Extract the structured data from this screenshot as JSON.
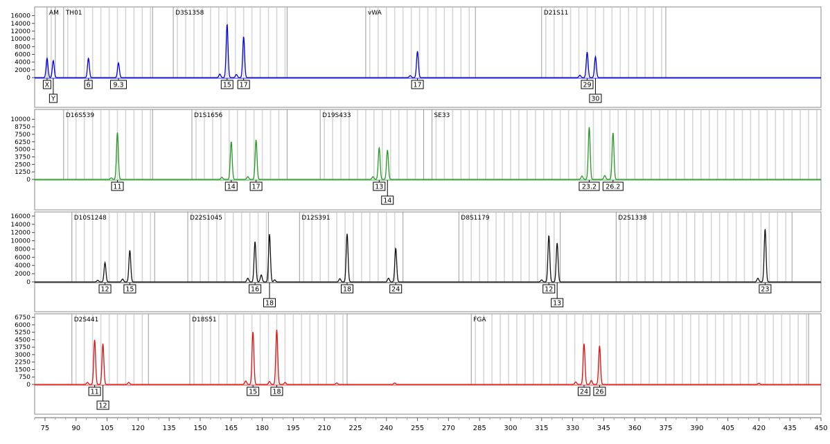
{
  "chart_data": {
    "type": "line",
    "x_axis": {
      "range": [
        70,
        450
      ],
      "ticks": [
        75,
        90,
        105,
        120,
        135,
        150,
        165,
        180,
        195,
        210,
        225,
        240,
        255,
        270,
        285,
        300,
        315,
        330,
        345,
        360,
        375,
        390,
        405,
        420,
        435,
        450
      ]
    },
    "panels": [
      {
        "color": "#0000dd",
        "y_ticks": [
          16000,
          14000,
          12000,
          10000,
          8000,
          6000,
          4000,
          2000,
          0
        ],
        "ylim": [
          0,
          17000
        ],
        "markers": [
          {
            "name": "AM",
            "start": 76,
            "end": 80
          },
          {
            "name": "TH01",
            "start": 84,
            "end": 127
          },
          {
            "name": "D3S1358",
            "start": 137,
            "end": 192
          },
          {
            "name": "vWA",
            "start": 230,
            "end": 283
          },
          {
            "name": "D21S11",
            "start": 315,
            "end": 375
          }
        ],
        "peaks": [
          {
            "x": 76.0,
            "height": 5000,
            "label": "X",
            "row": 0
          },
          {
            "x": 79.0,
            "height": 4400,
            "label": "Y",
            "row": 1
          },
          {
            "x": 96.0,
            "height": 5000,
            "label": "6",
            "row": 0
          },
          {
            "x": 110.5,
            "height": 3800,
            "label": "9.3",
            "row": 0
          },
          {
            "x": 163.0,
            "height": 13800,
            "label": "15",
            "row": 0
          },
          {
            "x": 171.0,
            "height": 10600,
            "label": "17",
            "row": 0
          },
          {
            "x": 255.0,
            "height": 6800,
            "label": "17",
            "row": 0
          },
          {
            "x": 337.0,
            "height": 6600,
            "label": "29",
            "row": 0
          },
          {
            "x": 341.0,
            "height": 5400,
            "label": "30",
            "row": 1
          }
        ],
        "minor_peaks": [
          {
            "x": 159.5,
            "height": 900
          },
          {
            "x": 167.5,
            "height": 800
          },
          {
            "x": 251.5,
            "height": 500
          },
          {
            "x": 333.5,
            "height": 600
          }
        ]
      },
      {
        "color": "#229922",
        "y_ticks": [
          10000,
          8750,
          7500,
          6250,
          5000,
          3750,
          2500,
          1250,
          0
        ],
        "ylim": [
          0,
          10600
        ],
        "markers": [
          {
            "name": "D16S539",
            "start": 84,
            "end": 127
          },
          {
            "name": "D1S1656",
            "start": 146,
            "end": 192
          },
          {
            "name": "D19S433",
            "start": 208,
            "end": 258
          },
          {
            "name": "SE33",
            "start": 262,
            "end": 450
          }
        ],
        "peaks": [
          {
            "x": 110.0,
            "height": 7800,
            "label": "11",
            "row": 0
          },
          {
            "x": 165.0,
            "height": 6300,
            "label": "14",
            "row": 0
          },
          {
            "x": 177.0,
            "height": 6600,
            "label": "17",
            "row": 0
          },
          {
            "x": 236.5,
            "height": 5300,
            "label": "13",
            "row": 0
          },
          {
            "x": 240.5,
            "height": 4900,
            "label": "14",
            "row": 1
          },
          {
            "x": 338.0,
            "height": 8700,
            "label": "23.2",
            "row": 0
          },
          {
            "x": 349.5,
            "height": 7800,
            "label": "26.2",
            "row": 0
          }
        ],
        "minor_peaks": [
          {
            "x": 107.0,
            "height": 250
          },
          {
            "x": 160.5,
            "height": 350
          },
          {
            "x": 173.0,
            "height": 450
          },
          {
            "x": 233.5,
            "height": 450
          },
          {
            "x": 334.5,
            "height": 550
          },
          {
            "x": 345.5,
            "height": 650
          }
        ]
      },
      {
        "color": "#111111",
        "y_ticks": [
          16000,
          14000,
          12000,
          10000,
          8000,
          6000,
          4000,
          2000,
          0
        ],
        "ylim": [
          0,
          17000
        ],
        "markers": [
          {
            "name": "D10S1248",
            "start": 88,
            "end": 128
          },
          {
            "name": "D22S1045",
            "start": 144,
            "end": 183
          },
          {
            "name": "D12S391",
            "start": 198,
            "end": 248
          },
          {
            "name": "D8S1179",
            "start": 275,
            "end": 324
          },
          {
            "name": "D2S1338",
            "start": 351,
            "end": 436
          }
        ],
        "peaks": [
          {
            "x": 104.0,
            "height": 4700,
            "label": "12",
            "row": 0
          },
          {
            "x": 116.0,
            "height": 7700,
            "label": "15",
            "row": 0
          },
          {
            "x": 176.5,
            "height": 9800,
            "label": "16",
            "row": 0
          },
          {
            "x": 183.5,
            "height": 11600,
            "label": "18",
            "row": 1
          },
          {
            "x": 221.0,
            "height": 11700,
            "label": "18",
            "row": 0
          },
          {
            "x": 244.5,
            "height": 8200,
            "label": "24",
            "row": 0
          },
          {
            "x": 318.5,
            "height": 11300,
            "label": "12",
            "row": 0
          },
          {
            "x": 322.5,
            "height": 9500,
            "label": "13",
            "row": 1
          },
          {
            "x": 423.0,
            "height": 12900,
            "label": "23",
            "row": 0
          }
        ],
        "minor_peaks": [
          {
            "x": 100.5,
            "height": 400
          },
          {
            "x": 112.5,
            "height": 700
          },
          {
            "x": 173.0,
            "height": 900
          },
          {
            "x": 179.5,
            "height": 1700
          },
          {
            "x": 186.0,
            "height": 500
          },
          {
            "x": 217.5,
            "height": 800
          },
          {
            "x": 241.0,
            "height": 900
          },
          {
            "x": 315.0,
            "height": 500
          },
          {
            "x": 419.5,
            "height": 900
          }
        ]
      },
      {
        "color": "#dd1111",
        "y_ticks": [
          6750,
          6000,
          5250,
          4500,
          3750,
          3000,
          2250,
          1500,
          750,
          0
        ],
        "ylim": [
          0,
          6900
        ],
        "markers": [
          {
            "name": "D2S441",
            "start": 88,
            "end": 125
          },
          {
            "name": "D18S51",
            "start": 145,
            "end": 221
          },
          {
            "name": "FGA",
            "start": 281,
            "end": 444
          }
        ],
        "peaks": [
          {
            "x": 99.0,
            "height": 4500,
            "label": "11",
            "row": 0
          },
          {
            "x": 103.0,
            "height": 4100,
            "label": "12",
            "row": 1
          },
          {
            "x": 175.5,
            "height": 5300,
            "label": "15",
            "row": 0
          },
          {
            "x": 187.0,
            "height": 5500,
            "label": "18",
            "row": 0
          },
          {
            "x": 335.5,
            "height": 4100,
            "label": "24",
            "row": 0
          },
          {
            "x": 343.0,
            "height": 3900,
            "label": "26",
            "row": 0
          }
        ],
        "minor_peaks": [
          {
            "x": 95.5,
            "height": 200
          },
          {
            "x": 115.5,
            "height": 200
          },
          {
            "x": 172.0,
            "height": 350
          },
          {
            "x": 183.5,
            "height": 300
          },
          {
            "x": 191.0,
            "height": 200
          },
          {
            "x": 331.5,
            "height": 250
          },
          {
            "x": 339.0,
            "height": 400
          },
          {
            "x": 244.0,
            "height": 150
          },
          {
            "x": 216.0,
            "height": 150
          },
          {
            "x": 420.0,
            "height": 120
          }
        ]
      }
    ]
  }
}
